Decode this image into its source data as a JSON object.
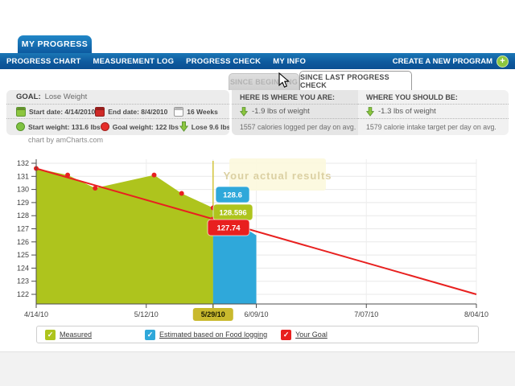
{
  "header": {
    "tab": "MY PROGRESS",
    "nav": [
      "PROGRESS CHART",
      "MEASUREMENT LOG",
      "PROGRESS CHECK",
      "MY INFO"
    ],
    "create": "CREATE A NEW PROGRAM"
  },
  "icons": {
    "plus": "+",
    "check": "✓"
  },
  "tabs": {
    "since_beginning": "SINCE BEGINNING",
    "since_last": "SINCE LAST PROGRESS CHECK"
  },
  "goal_panel": {
    "label": "GOAL:",
    "value": "Lose Weight",
    "start_date": "Start date: 4/14/2010",
    "end_date": "End date: 8/4/2010",
    "duration": "16 Weeks",
    "start_weight": "Start weight: 131.6 lbs",
    "goal_weight": "Goal weight: 122 lbs",
    "lose": "Lose 9.6 lbs"
  },
  "status_panel": {
    "you_are": {
      "title": "HERE IS WHERE YOU ARE:",
      "weight": "-1.9 lbs of weight",
      "calories": "1557 calories logged per day on avg."
    },
    "should_be": {
      "title": "WHERE YOU SHOULD BE:",
      "weight": "-1.3 lbs of weight",
      "calories": "1579 calorie intake target per day on avg."
    }
  },
  "chart_data": {
    "type": "area",
    "credit": "chart by amCharts.com",
    "watermark": "Your actual results",
    "x_axis": {
      "unit": "date",
      "domain_days": 112,
      "ticks": [
        {
          "label": "4/14/10",
          "day": 0
        },
        {
          "label": "5/12/10",
          "day": 28
        },
        {
          "label": "5/29/10",
          "day": 45,
          "highlighted": true
        },
        {
          "label": "6/09/10",
          "day": 56
        },
        {
          "label": "7/07/10",
          "day": 84
        },
        {
          "label": "8/04/10",
          "day": 112
        }
      ]
    },
    "y_axis": {
      "min": 122,
      "max": 132,
      "step": 1
    },
    "series": [
      {
        "name": "Measured",
        "type": "area",
        "color": "#aec41d",
        "bullet_color": "#e8201f",
        "points": [
          [
            0,
            131.6
          ],
          [
            8,
            131.1
          ],
          [
            15,
            130.1
          ],
          [
            30,
            131.1
          ],
          [
            37,
            129.7
          ],
          [
            45,
            128.596
          ]
        ]
      },
      {
        "name": "Estimated based on Food logging",
        "type": "area",
        "color": "#2fa8da",
        "points": [
          [
            45,
            128.6
          ],
          [
            56,
            126.5
          ]
        ]
      },
      {
        "name": "Your Goal",
        "type": "line",
        "color": "#e8201f",
        "points": [
          [
            0,
            131.6
          ],
          [
            112,
            122
          ]
        ]
      }
    ],
    "cursor": {
      "day": 45,
      "date_label": "5/29/10",
      "line_color": "#d2c43c",
      "label_bg": "#c9b92d",
      "balloons": [
        {
          "text": "128.6",
          "color": "#2fa8da"
        },
        {
          "text": "128.596",
          "color": "#aec41d"
        },
        {
          "text": "127.74",
          "color": "#e8201f"
        }
      ]
    }
  }
}
